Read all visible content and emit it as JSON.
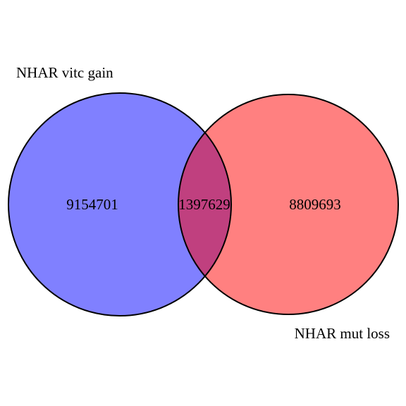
{
  "sets": [
    {
      "label": "NHAR vitc gain",
      "color": "#8080ff",
      "only_count": "9154701"
    },
    {
      "label": "NHAR mut loss",
      "color": "#ff8080",
      "only_count": "8809693"
    }
  ],
  "overlap": {
    "count": "1397629",
    "color": "#c0407f"
  },
  "outline_color": "#000000"
}
